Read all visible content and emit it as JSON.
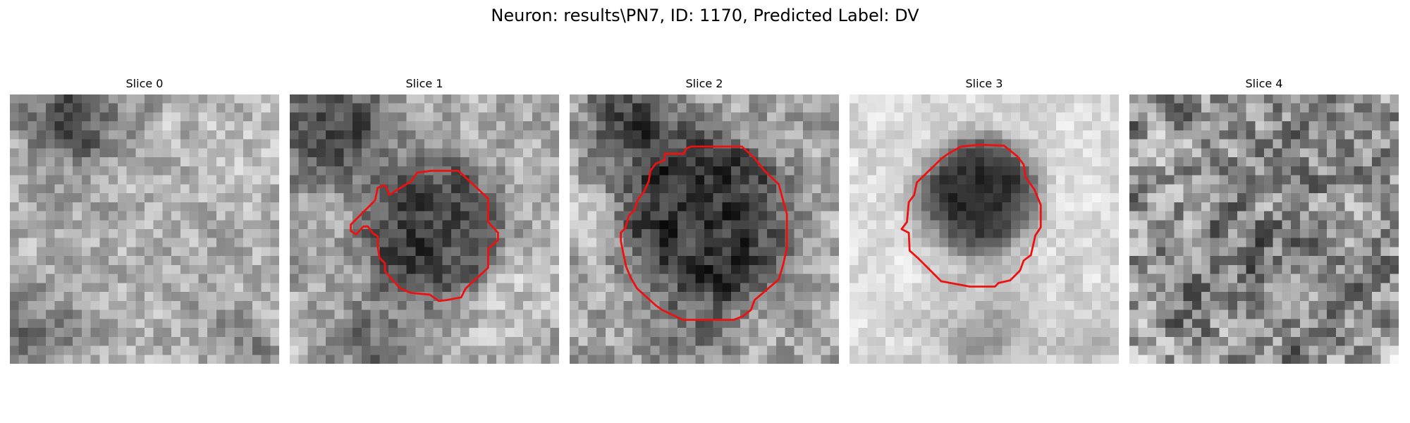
{
  "figure": {
    "title": "Neuron: results\\PN7, ID: 1170, Predicted Label: DV"
  },
  "contour_color": "#ee1111",
  "slices": [
    {
      "title": "Slice 0",
      "has_contour": false,
      "texture": "bright textured field, dark blotch at top-left"
    },
    {
      "title": "Slice 1",
      "has_contour": true,
      "texture": "dark irregular cell body, dark region top-left"
    },
    {
      "title": "Slice 2",
      "has_contour": true,
      "texture": "large dark rounded cell body"
    },
    {
      "title": "Slice 3",
      "has_contour": true,
      "texture": "dark round cell body on bright background"
    },
    {
      "title": "Slice 4",
      "has_contour": false,
      "texture": "uniform grainy noise, slightly darker center"
    }
  ]
}
